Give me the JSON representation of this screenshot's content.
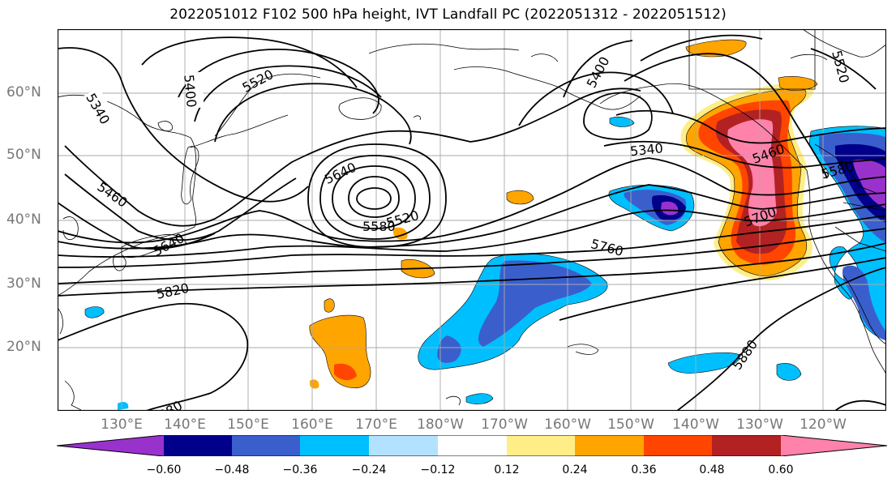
{
  "title": "2022051012 F102 500 hPa height, IVT Landfall PC (2022051312 - 2022051512)",
  "lat_labels": [
    "60°N",
    "50°N",
    "40°N",
    "30°N",
    "20°N"
  ],
  "lon_labels": [
    "130°E",
    "140°E",
    "150°E",
    "160°E",
    "170°E",
    "180°W",
    "170°W",
    "160°W",
    "150°W",
    "140°W",
    "130°W",
    "120°W"
  ],
  "contour_labels": [
    "5340",
    "5400",
    "5460",
    "5520",
    "5580",
    "5640",
    "5700",
    "5760",
    "5820",
    "5880"
  ],
  "colorbar": {
    "colors": [
      "#9932cc",
      "#00008b",
      "#3a5fcd",
      "#00bfff",
      "#b2e2ff",
      "#ffffff",
      "#ffee88",
      "#ffa500",
      "#ff4500",
      "#b22222",
      "#ff82ab"
    ],
    "tick_labels": [
      "−0.60",
      "−0.48",
      "−0.36",
      "−0.24",
      "−0.12",
      "0.12",
      "0.24",
      "0.36",
      "0.48",
      "0.60"
    ]
  }
}
